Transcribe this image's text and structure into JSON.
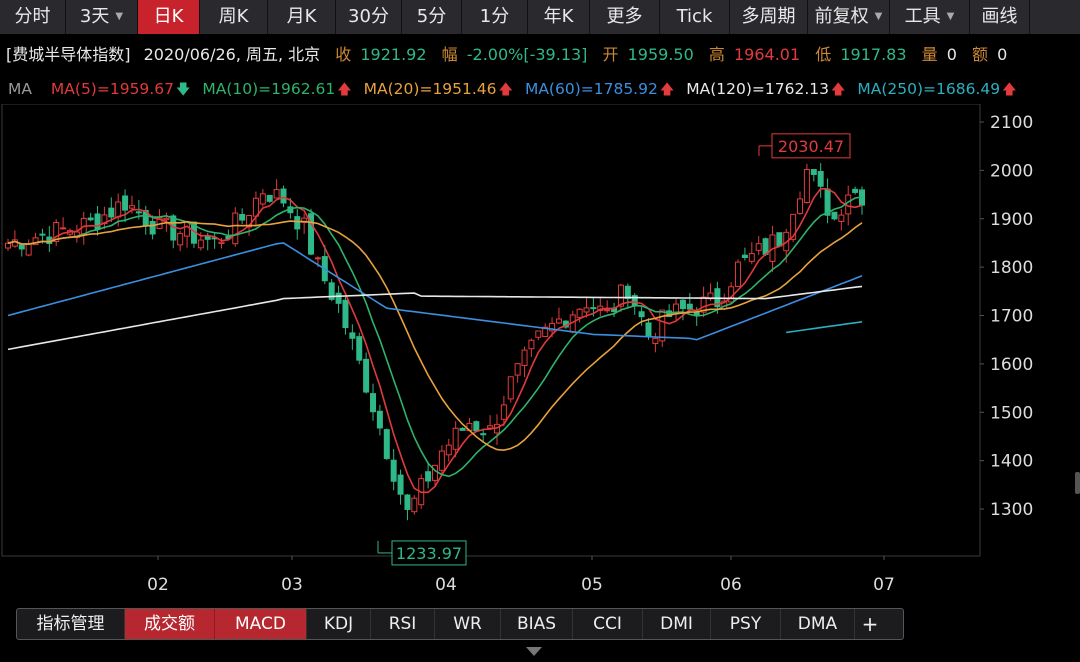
{
  "toolbar": {
    "items": [
      {
        "label": "分时",
        "active": false,
        "caret": false
      },
      {
        "label": "3天",
        "active": false,
        "caret": true
      },
      {
        "label": "日K",
        "active": true,
        "caret": false
      },
      {
        "label": "周K",
        "active": false,
        "caret": false
      },
      {
        "label": "月K",
        "active": false,
        "caret": false
      },
      {
        "label": "30分",
        "active": false,
        "caret": false
      },
      {
        "label": "5分",
        "active": false,
        "caret": false
      },
      {
        "label": "1分",
        "active": false,
        "caret": false
      },
      {
        "label": "年K",
        "active": false,
        "caret": false
      },
      {
        "label": "更多",
        "active": false,
        "caret": false
      },
      {
        "label": "Tick",
        "active": false,
        "caret": false
      },
      {
        "label": "多周期",
        "active": false,
        "caret": false
      },
      {
        "label": "前复权",
        "active": false,
        "caret": true
      },
      {
        "label": "工具",
        "active": false,
        "caret": true
      },
      {
        "label": "画线",
        "active": false,
        "caret": false
      }
    ]
  },
  "info": {
    "name": "[费城半导体指数]",
    "date": "2020/06/26, 周五, 北京",
    "close_label": "收",
    "close_value": "1921.92",
    "change_label": "幅",
    "change_pct": "-2.00%",
    "change_abs": "[-39.13]",
    "open_label": "开",
    "open_value": "1959.50",
    "high_label": "高",
    "high_value": "1964.01",
    "low_label": "低",
    "low_value": "1917.83",
    "vol_label": "量",
    "vol_value": "0",
    "amt_label": "额",
    "amt_value": "0"
  },
  "ma": {
    "title": "MA",
    "items": [
      {
        "text": "MA(5)=1959.67",
        "color": "#e03a3a",
        "arrow": "down"
      },
      {
        "text": "MA(10)=1962.61",
        "color": "#2fb36b",
        "arrow": "up"
      },
      {
        "text": "MA(20)=1951.46",
        "color": "#e8a23c",
        "arrow": "up"
      },
      {
        "text": "MA(60)=1785.92",
        "color": "#3b8fe0",
        "arrow": "up"
      },
      {
        "text": "MA(120)=1762.13",
        "color": "#e8e8e8",
        "arrow": "up"
      },
      {
        "text": "MA(250)=1686.49",
        "color": "#2ab0c0",
        "arrow": "up"
      }
    ]
  },
  "chart_data": {
    "type": "candlestick",
    "y_ticks": [
      2100,
      2000,
      1900,
      1800,
      1700,
      1600,
      1500,
      1400,
      1300
    ],
    "x_ticks": [
      "02",
      "03",
      "04",
      "05",
      "06",
      "07"
    ],
    "annotations": {
      "high_label": "2030.47",
      "low_label": "1233.97"
    },
    "colors": {
      "up": "#e23b3b",
      "down": "#2fb888"
    }
  },
  "bottom": {
    "tabs": [
      {
        "label": "指标管理",
        "active": false
      },
      {
        "label": "成交额",
        "active": true
      },
      {
        "label": "MACD",
        "active": true
      },
      {
        "label": "KDJ",
        "active": false
      },
      {
        "label": "RSI",
        "active": false
      },
      {
        "label": "WR",
        "active": false
      },
      {
        "label": "BIAS",
        "active": false
      },
      {
        "label": "CCI",
        "active": false
      },
      {
        "label": "DMI",
        "active": false
      },
      {
        "label": "PSY",
        "active": false
      },
      {
        "label": "DMA",
        "active": false
      }
    ],
    "plus": "+"
  }
}
